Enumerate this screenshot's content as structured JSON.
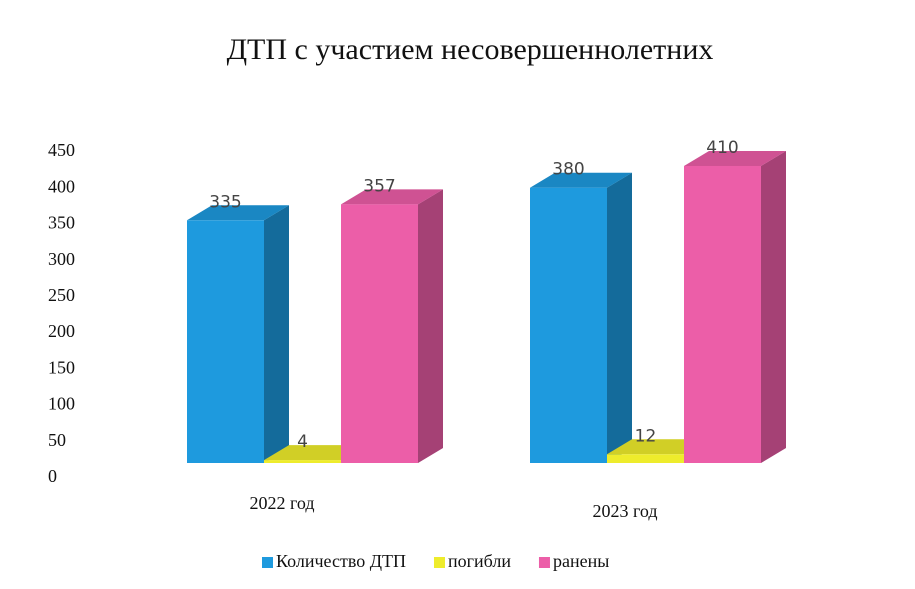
{
  "chart_data": {
    "type": "bar3d",
    "title": "ДТП с участием несовершеннолетних",
    "categories": [
      "2022 год",
      "2023 год"
    ],
    "series": [
      {
        "name": "Количество ДТП",
        "color": "#1e9ade",
        "values": [
          335,
          380
        ]
      },
      {
        "name": "погибли",
        "color": "#eeec2c",
        "values": [
          4,
          12
        ]
      },
      {
        "name": "ранены",
        "color": "#ec5ea8",
        "values": [
          357,
          410
        ]
      }
    ],
    "ylim": [
      0,
      450
    ],
    "yticks": [
      0,
      50,
      100,
      150,
      200,
      250,
      300,
      350,
      400,
      450
    ],
    "grid": false,
    "legend": "bottom"
  }
}
